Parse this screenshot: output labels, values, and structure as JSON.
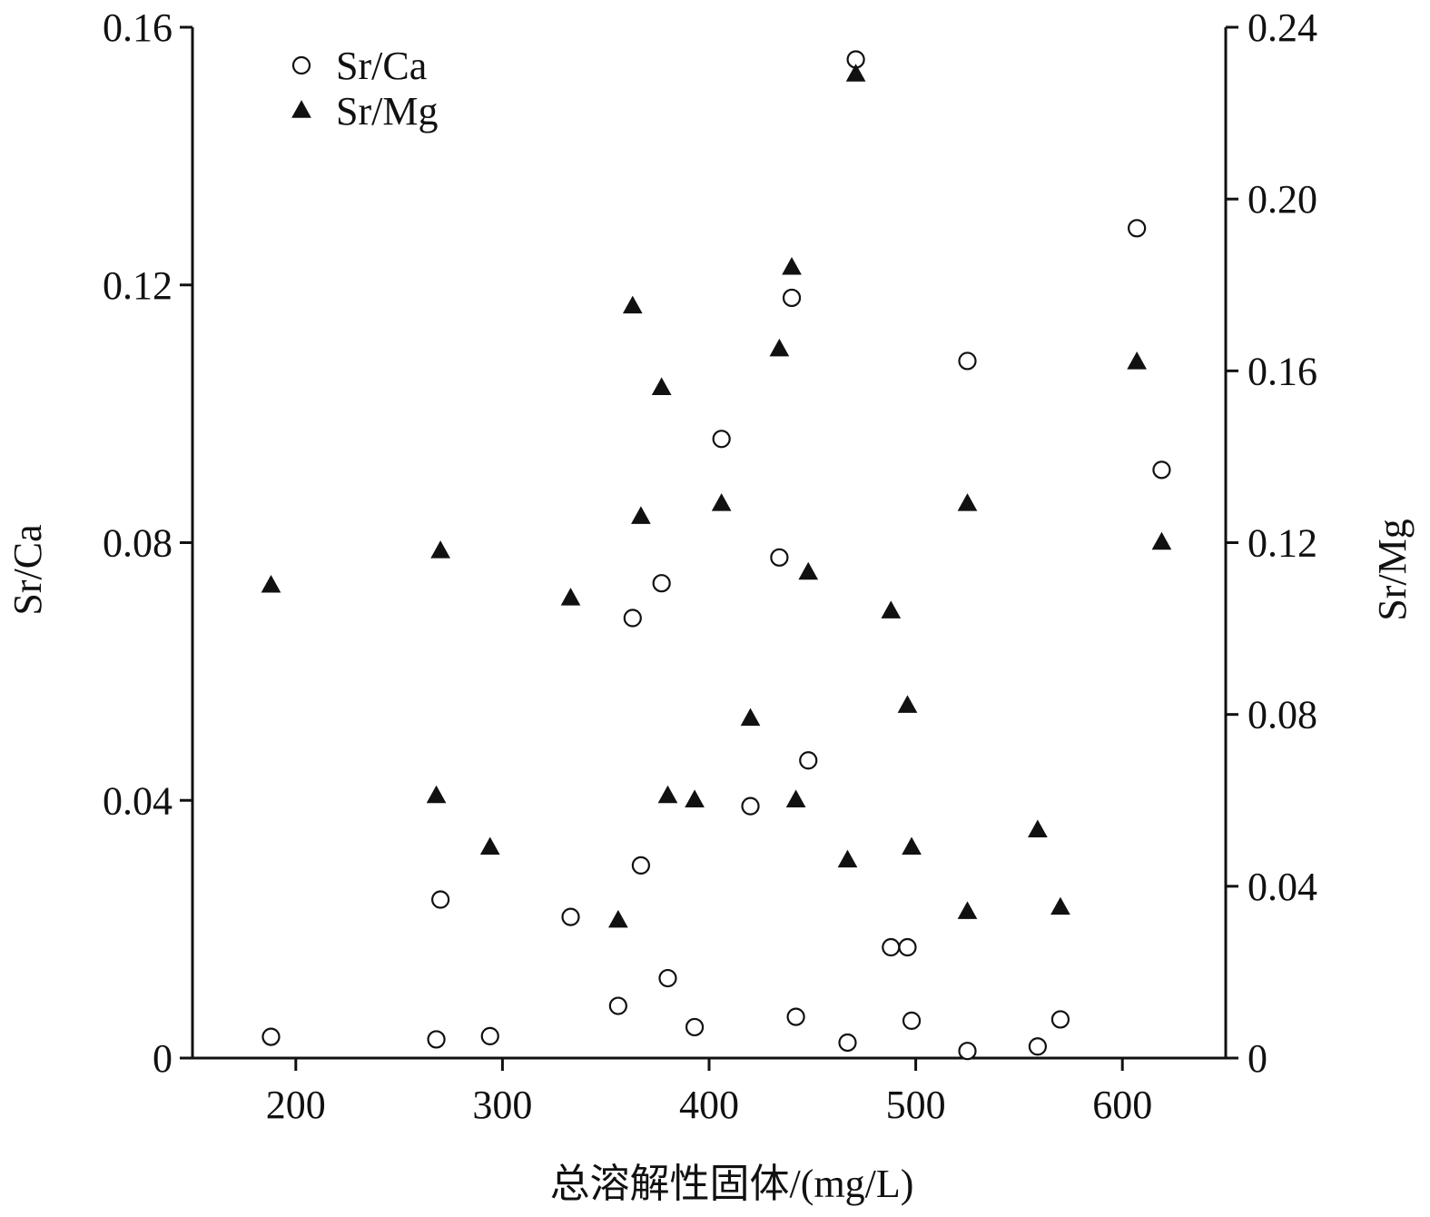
{
  "chart_data": {
    "type": "scatter",
    "xlabel": "总溶解性固体/(mg/L)",
    "ylabel_left": "Sr/Ca",
    "ylabel_right": "Sr/Mg",
    "xlim": [
      150,
      650
    ],
    "ylim_left": [
      0,
      0.16
    ],
    "ylim_right": [
      0,
      0.24
    ],
    "x_ticks": [
      200,
      300,
      400,
      500,
      600
    ],
    "y_left_ticks": [
      "0",
      "0.04",
      "0.08",
      "0.12",
      "0.16"
    ],
    "y_right_ticks": [
      "0",
      "0.04",
      "0.08",
      "0.12",
      "0.16",
      "0.20",
      "0.24"
    ],
    "grid": false,
    "legend_position": "top-left",
    "series": [
      {
        "name": "Sr/Ca",
        "marker": "open-circle",
        "axis": "left",
        "points": [
          [
            188,
            0.0033
          ],
          [
            268,
            0.0029
          ],
          [
            270,
            0.0246
          ],
          [
            294,
            0.0034
          ],
          [
            333,
            0.0219
          ],
          [
            356,
            0.0081
          ],
          [
            363,
            0.0683
          ],
          [
            367,
            0.0299
          ],
          [
            377,
            0.0737
          ],
          [
            380,
            0.0124
          ],
          [
            393,
            0.0048
          ],
          [
            406,
            0.0961
          ],
          [
            420,
            0.0391
          ],
          [
            434,
            0.0777
          ],
          [
            440,
            0.118
          ],
          [
            442,
            0.0064
          ],
          [
            448,
            0.0462
          ],
          [
            467,
            0.0024
          ],
          [
            471,
            0.155
          ],
          [
            488,
            0.0172
          ],
          [
            496,
            0.0172
          ],
          [
            498,
            0.0058
          ],
          [
            525,
            0.1082
          ],
          [
            525,
            0.0011
          ],
          [
            559,
            0.0018
          ],
          [
            570,
            0.006
          ],
          [
            607,
            0.1288
          ],
          [
            619,
            0.0913
          ]
        ]
      },
      {
        "name": "Sr/Mg",
        "marker": "filled-triangle",
        "axis": "right",
        "points": [
          [
            188,
            0.11
          ],
          [
            268,
            0.061
          ],
          [
            270,
            0.118
          ],
          [
            294,
            0.049
          ],
          [
            333,
            0.107
          ],
          [
            356,
            0.032
          ],
          [
            363,
            0.175
          ],
          [
            367,
            0.126
          ],
          [
            377,
            0.156
          ],
          [
            380,
            0.061
          ],
          [
            393,
            0.06
          ],
          [
            406,
            0.129
          ],
          [
            420,
            0.079
          ],
          [
            434,
            0.165
          ],
          [
            440,
            0.184
          ],
          [
            442,
            0.06
          ],
          [
            448,
            0.113
          ],
          [
            467,
            0.046
          ],
          [
            471,
            0.229
          ],
          [
            488,
            0.104
          ],
          [
            496,
            0.082
          ],
          [
            498,
            0.049
          ],
          [
            525,
            0.034
          ],
          [
            525,
            0.129
          ],
          [
            559,
            0.053
          ],
          [
            570,
            0.035
          ],
          [
            607,
            0.162
          ],
          [
            619,
            0.12
          ]
        ]
      }
    ]
  }
}
